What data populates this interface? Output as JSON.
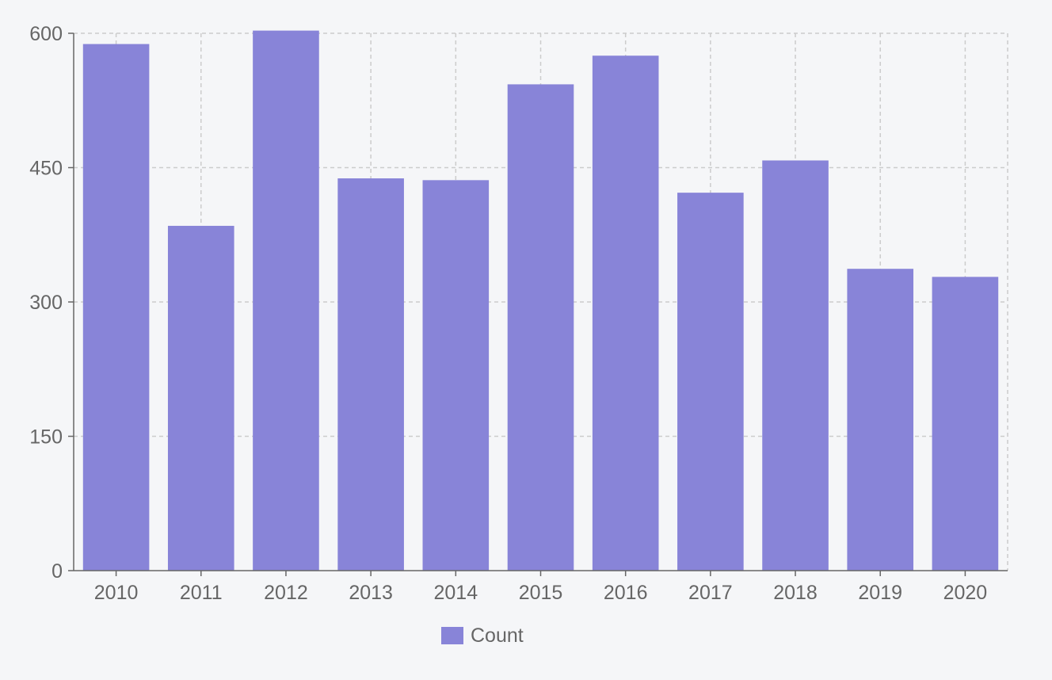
{
  "chart_data": {
    "type": "bar",
    "title": "",
    "xlabel": "",
    "ylabel": "",
    "categories": [
      "2010",
      "2011",
      "2012",
      "2013",
      "2014",
      "2015",
      "2016",
      "2017",
      "2018",
      "2019",
      "2020"
    ],
    "series": [
      {
        "name": "Count",
        "color": "#8884d8",
        "values": [
          588,
          385,
          603,
          438,
          436,
          543,
          575,
          422,
          458,
          337,
          328
        ]
      }
    ],
    "ylim": [
      0,
      600
    ],
    "yticks": [
      "0",
      "150",
      "300",
      "450",
      "600"
    ],
    "grid": true,
    "legend": "bottom-center"
  }
}
